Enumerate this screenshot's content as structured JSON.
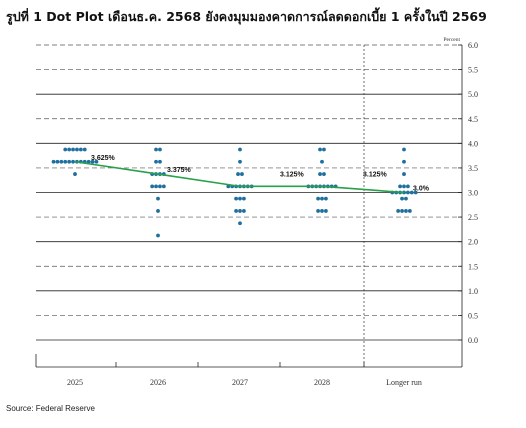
{
  "title": "รูปที่ 1 Dot Plot เดือนธ.ค. 2568 ยังคงมุมมองคาดการณ์ลดดอกเบี้ย 1 ครั้งในปี 2569",
  "source": "Source: Federal Reserve",
  "chart_data": {
    "type": "scatter",
    "y_unit": "Percent",
    "ylim": [
      -0.25,
      6.0
    ],
    "y_ticks": [
      0.0,
      0.5,
      1.0,
      1.5,
      2.0,
      2.5,
      3.0,
      3.5,
      4.0,
      4.5,
      5.0,
      5.5,
      6.0
    ],
    "y_tick_labels": [
      "0.0",
      "0.5",
      "1.0",
      "1.5",
      "2.0",
      "2.5",
      "3.0",
      "3.5",
      "4.0",
      "4.5",
      "5.0",
      "5.5",
      "6.0"
    ],
    "categories": [
      "2025",
      "2026",
      "2027",
      "2028",
      "Longer run"
    ],
    "dot_color": "#1f6f9f",
    "median_color": "#2aa04a",
    "dots": [
      {
        "category": "2025",
        "levels": [
          {
            "y": 3.875,
            "n": 6
          },
          {
            "y": 3.625,
            "n": 12
          },
          {
            "y": 3.375,
            "n": 1
          }
        ]
      },
      {
        "category": "2026",
        "levels": [
          {
            "y": 3.875,
            "n": 2
          },
          {
            "y": 3.625,
            "n": 2
          },
          {
            "y": 3.375,
            "n": 4
          },
          {
            "y": 3.125,
            "n": 4
          },
          {
            "y": 2.875,
            "n": 1
          },
          {
            "y": 2.625,
            "n": 1
          },
          {
            "y": 2.125,
            "n": 1
          }
        ]
      },
      {
        "category": "2027",
        "levels": [
          {
            "y": 3.875,
            "n": 1
          },
          {
            "y": 3.625,
            "n": 1
          },
          {
            "y": 3.375,
            "n": 2
          },
          {
            "y": 3.125,
            "n": 7
          },
          {
            "y": 2.875,
            "n": 3
          },
          {
            "y": 2.625,
            "n": 3
          },
          {
            "y": 2.375,
            "n": 1
          }
        ]
      },
      {
        "category": "2028",
        "levels": [
          {
            "y": 3.875,
            "n": 2
          },
          {
            "y": 3.625,
            "n": 1
          },
          {
            "y": 3.375,
            "n": 2
          },
          {
            "y": 3.125,
            "n": 8
          },
          {
            "y": 2.875,
            "n": 3
          },
          {
            "y": 2.625,
            "n": 3
          }
        ]
      },
      {
        "category": "Longer run",
        "levels": [
          {
            "y": 3.875,
            "n": 1
          },
          {
            "y": 3.625,
            "n": 1
          },
          {
            "y": 3.375,
            "n": 1
          },
          {
            "y": 3.125,
            "n": 3
          },
          {
            "y": 3.0,
            "n": 7
          },
          {
            "y": 2.875,
            "n": 2
          },
          {
            "y": 2.625,
            "n": 4
          }
        ]
      }
    ],
    "median": {
      "name": "",
      "points": [
        {
          "category": "2025",
          "y": 3.625,
          "label": "3.625%"
        },
        {
          "category": "2026",
          "y": 3.375,
          "label": "3.375%"
        },
        {
          "category": "2027",
          "y": 3.125,
          "label": "3.125%"
        },
        {
          "category": "2028",
          "y": 3.125,
          "label": "3.125%"
        },
        {
          "category": "Longer run",
          "y": 3.0,
          "label": "3.0%"
        }
      ]
    }
  }
}
